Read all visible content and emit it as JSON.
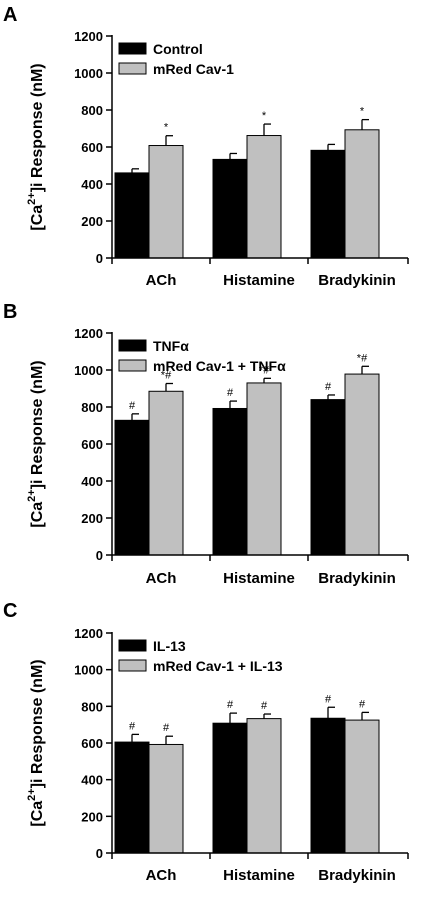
{
  "colors": {
    "series1": "#000000",
    "series2": "#c0c0c0",
    "axis": "#000000"
  },
  "chart_data": [
    {
      "panel": "A",
      "type": "bar",
      "ylabel_parts": [
        "[Ca",
        "2+",
        "]i  Response (nM)"
      ],
      "ylim": [
        0,
        1200
      ],
      "yticks": [
        0,
        200,
        400,
        600,
        800,
        1000,
        1200
      ],
      "categories": [
        "ACh",
        "Histamine",
        "Bradykinin"
      ],
      "grid": false,
      "legend_position": "top-left",
      "series": [
        {
          "name": "Control",
          "color": "#000000",
          "values": [
            460,
            533,
            582
          ],
          "errors": [
            22,
            32,
            32
          ],
          "annotations": [
            "",
            "",
            ""
          ]
        },
        {
          "name": "mRed Cav-1",
          "color": "#c0c0c0",
          "values": [
            608,
            662,
            693
          ],
          "errors": [
            53,
            62,
            55
          ],
          "annotations": [
            "*",
            "*",
            "*"
          ]
        }
      ]
    },
    {
      "panel": "B",
      "type": "bar",
      "ylabel_parts": [
        "[Ca",
        "2+",
        "]i  Response (nM)"
      ],
      "ylim": [
        0,
        1200
      ],
      "yticks": [
        0,
        200,
        400,
        600,
        800,
        1000,
        1200
      ],
      "categories": [
        "ACh",
        "Histamine",
        "Bradykinin"
      ],
      "grid": false,
      "legend_position": "top-left",
      "series": [
        {
          "name": "TNFα",
          "color": "#000000",
          "values": [
            728,
            792,
            840
          ],
          "errors": [
            35,
            40,
            25
          ],
          "annotations": [
            "#",
            "#",
            "#"
          ]
        },
        {
          "name": "mRed Cav-1 + TNFα",
          "color": "#c0c0c0",
          "values": [
            885,
            930,
            978
          ],
          "errors": [
            42,
            25,
            42
          ],
          "annotations": [
            "*#",
            "*#",
            "*#"
          ]
        }
      ]
    },
    {
      "panel": "C",
      "type": "bar",
      "ylabel_parts": [
        "[Ca",
        "2+",
        "]i  Response (nM)"
      ],
      "ylim": [
        0,
        1200
      ],
      "yticks": [
        0,
        200,
        400,
        600,
        800,
        1000,
        1200
      ],
      "categories": [
        "ACh",
        "Histamine",
        "Bradykinin"
      ],
      "grid": false,
      "legend_position": "top-left",
      "series": [
        {
          "name": "IL-13",
          "color": "#000000",
          "values": [
            605,
            708,
            735
          ],
          "errors": [
            42,
            55,
            60
          ],
          "annotations": [
            "#",
            "#",
            "#"
          ]
        },
        {
          "name": "mRed Cav-1 + IL-13",
          "color": "#c0c0c0",
          "values": [
            592,
            733,
            725
          ],
          "errors": [
            45,
            25,
            42
          ],
          "annotations": [
            "#",
            "#",
            "#"
          ]
        }
      ]
    }
  ]
}
